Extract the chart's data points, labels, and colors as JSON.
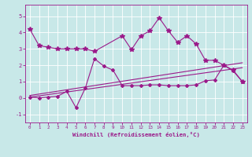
{
  "xlabel": "Windchill (Refroidissement éolien,°C)",
  "bg_color": "#c8e8e8",
  "line_color": "#9b1a8a",
  "xlim": [
    -0.5,
    23.5
  ],
  "ylim": [
    -1.5,
    5.7
  ],
  "xticks": [
    0,
    1,
    2,
    3,
    4,
    5,
    6,
    7,
    8,
    9,
    10,
    11,
    12,
    13,
    14,
    15,
    16,
    17,
    18,
    19,
    20,
    21,
    22,
    23
  ],
  "yticks": [
    -1,
    0,
    1,
    2,
    3,
    4,
    5
  ],
  "series1_x": [
    0,
    1,
    2,
    3,
    4,
    5,
    6,
    7,
    10,
    11,
    12,
    13,
    14,
    15,
    16,
    17,
    18,
    19,
    20,
    21,
    22,
    23
  ],
  "series1_y": [
    4.2,
    3.2,
    3.1,
    3.0,
    3.0,
    3.0,
    3.0,
    2.85,
    3.8,
    2.95,
    3.8,
    4.1,
    4.9,
    4.1,
    3.4,
    3.8,
    3.3,
    2.3,
    2.3,
    2.0,
    1.7,
    1.0
  ],
  "series2_x": [
    0,
    1,
    2,
    3,
    4,
    5,
    6,
    7,
    8,
    9,
    10,
    11,
    12,
    13,
    14,
    15,
    16,
    17,
    18,
    19,
    20,
    21,
    22,
    23
  ],
  "series2_y": [
    0.05,
    0.0,
    0.05,
    0.1,
    0.4,
    -0.6,
    0.6,
    2.4,
    1.95,
    1.7,
    0.75,
    0.75,
    0.75,
    0.8,
    0.8,
    0.75,
    0.75,
    0.75,
    0.8,
    1.05,
    1.1,
    2.0,
    1.65,
    1.0
  ],
  "series3_x": [
    0,
    23
  ],
  "series3_y": [
    0.05,
    1.85
  ],
  "series4_x": [
    0,
    23
  ],
  "series4_y": [
    0.15,
    2.15
  ],
  "figsize": [
    3.2,
    2.0
  ],
  "dpi": 100
}
